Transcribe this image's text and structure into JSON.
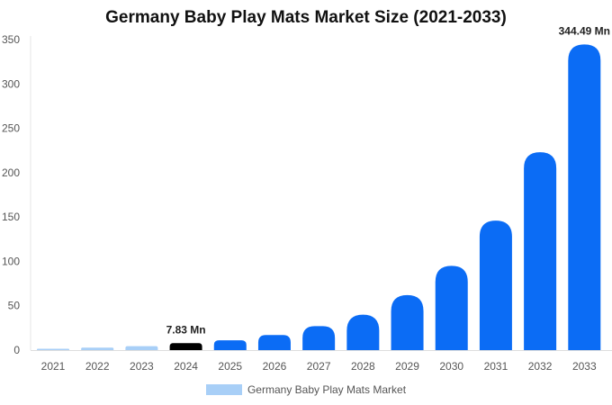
{
  "chart_data": {
    "type": "bar",
    "title": "Germany Baby Play Mats Market Size (2021-2033)",
    "categories": [
      "2021",
      "2022",
      "2023",
      "2024",
      "2025",
      "2026",
      "2027",
      "2028",
      "2029",
      "2030",
      "2031",
      "2032",
      "2033"
    ],
    "series": [
      {
        "name": "Germany Baby Play Mats Market",
        "values": [
          1.5,
          2.8,
          4.5,
          7.83,
          11,
          17,
          27,
          40,
          62,
          95,
          146,
          223,
          344.49
        ]
      }
    ],
    "ylim": [
      0,
      350
    ],
    "yticks": [
      0,
      50,
      100,
      150,
      200,
      250,
      300,
      350
    ],
    "data_labels": [
      {
        "category": "2024",
        "text": "7.83 Mn"
      },
      {
        "category": "2033",
        "text": "344.49 Mn"
      }
    ],
    "highlight_category": "2024",
    "grid": false,
    "legend_position": "bottom",
    "colors": {
      "historic": "#a8cff7",
      "highlight": "#000000",
      "forecast": "#0b6cf5",
      "legend_swatch": "#a8cff7"
    }
  }
}
